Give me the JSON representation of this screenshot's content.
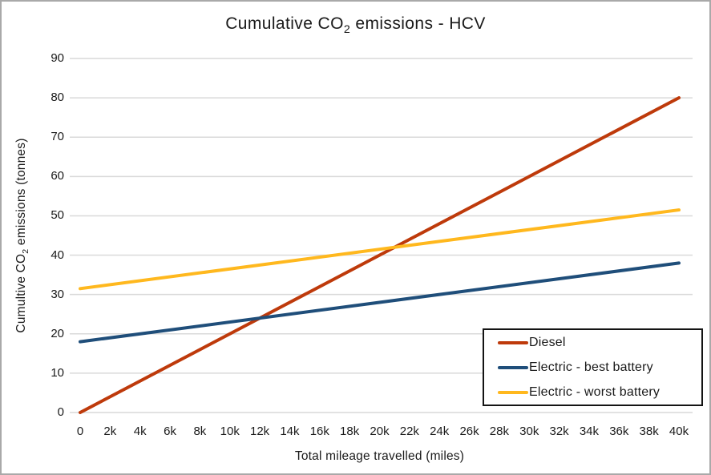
{
  "chart_data": {
    "type": "line",
    "title": {
      "prefix": "Cumulative CO",
      "subscript": "2",
      "suffix": " emissions - HCV"
    },
    "xlabel": "Total mileage travelled (miles)",
    "ylabel": {
      "prefix": "Cumultive CO",
      "subscript": "2",
      "suffix": " emissions (tonnes)"
    },
    "xlim": [
      0,
      40000
    ],
    "ylim": [
      0,
      90
    ],
    "grid": "horizontal",
    "gridline_color": "#D9D9D9",
    "text_color": "#1a1a1a",
    "x_ticks": {
      "values": [
        0,
        2000,
        4000,
        6000,
        8000,
        10000,
        12000,
        14000,
        16000,
        18000,
        20000,
        22000,
        24000,
        26000,
        28000,
        30000,
        32000,
        34000,
        36000,
        38000,
        40000
      ],
      "labels": [
        "0",
        "2k",
        "4k",
        "6k",
        "8k",
        "10k",
        "12k",
        "14k",
        "16k",
        "18k",
        "20k",
        "22k",
        "24k",
        "26k",
        "28k",
        "30k",
        "32k",
        "34k",
        "36k",
        "38k",
        "40k"
      ]
    },
    "y_ticks": {
      "values": [
        0,
        10,
        20,
        30,
        40,
        50,
        60,
        70,
        80,
        90
      ],
      "labels": [
        "0",
        "10",
        "20",
        "30",
        "40",
        "50",
        "60",
        "70",
        "80",
        "90"
      ]
    },
    "series": [
      {
        "name": "Diesel",
        "color": "#BE3A0B",
        "points": [
          [
            0,
            0
          ],
          [
            40000,
            80
          ]
        ]
      },
      {
        "name": "Electric - best battery",
        "color": "#1F4E7A",
        "points": [
          [
            0,
            18
          ],
          [
            40000,
            38
          ]
        ]
      },
      {
        "name": "Electric - worst battery",
        "color": "#FFB81E",
        "points": [
          [
            0,
            31.5
          ],
          [
            40000,
            51.5
          ]
        ]
      }
    ],
    "legend": {
      "position": "bottom-right",
      "border_color": "#141414",
      "background": "#ffffff"
    }
  }
}
